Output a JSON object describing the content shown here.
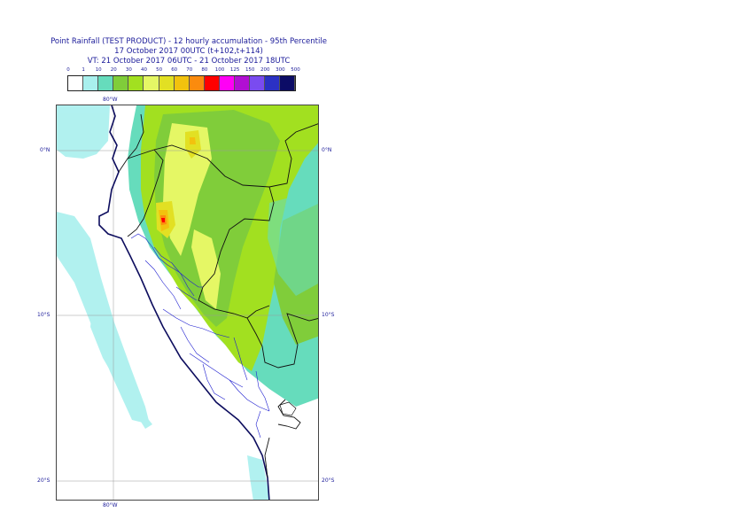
{
  "title": {
    "line1": "Point Rainfall (TEST PRODUCT) - 12 hourly accumulation - 95th Percentile",
    "line2": "17 October 2017 00UTC (t+102,t+114)",
    "line3": "VT: 21 October 2017 06UTC - 21 October 2017 18UTC"
  },
  "legend": {
    "labels": [
      "0",
      "1",
      "10",
      "20",
      "30",
      "40",
      "50",
      "60",
      "70",
      "80",
      "100",
      "125",
      "150",
      "200",
      "300",
      "500"
    ],
    "colors": [
      "#ffffff",
      "#a9f0ee",
      "#66dcbc",
      "#80cd3a",
      "#a2e020",
      "#e5f765",
      "#e2e023",
      "#f2c20e",
      "#fb8b0e",
      "#ff0000",
      "#ff00f5",
      "#b10fd3",
      "#7a4bf0",
      "#2b31c4",
      "#0c0c66"
    ]
  },
  "map": {
    "lon_labels": {
      "top": "80°W",
      "bottom": "80°W"
    },
    "lat_labels": {
      "equator": "0°N",
      "s10": "10°S",
      "s20": "20°S"
    }
  }
}
